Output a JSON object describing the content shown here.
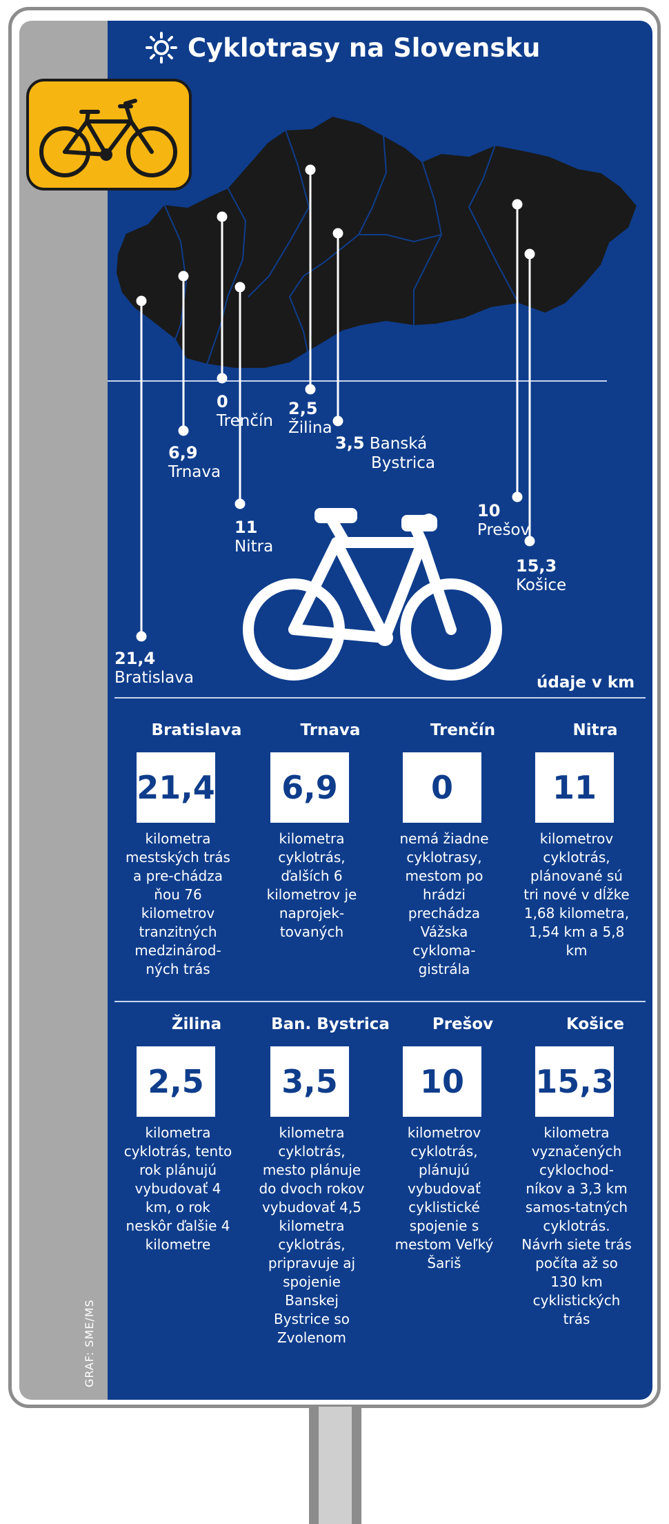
{
  "title": "Cyklotrasy na Slovensku",
  "credit": "GRAF: SME/MS",
  "unit_note": "údaje v km",
  "colors": {
    "panel_blue": "#0f3d8c",
    "badge_yellow": "#f6b511",
    "map_fill": "#1a1a1a"
  },
  "icons": {
    "title_icon": "sun-icon",
    "badge_icon": "bicycle-icon",
    "center_icon": "bicycle-icon"
  },
  "map_labels": [
    {
      "city": "Bratislava",
      "value": "21,4"
    },
    {
      "city": "Trnava",
      "value": "6,9"
    },
    {
      "city": "Trenčín",
      "value": "0"
    },
    {
      "city": "Nitra",
      "value": "11"
    },
    {
      "city": "Žilina",
      "value": "2,5"
    },
    {
      "city": "Banská Bystrica",
      "value": "3,5",
      "city_line1": "Banská",
      "city_line2": "Bystrica"
    },
    {
      "city": "Prešov",
      "value": "10"
    },
    {
      "city": "Košice",
      "value": "15,3"
    }
  ],
  "cards": [
    {
      "city": "Bratislava",
      "value": "21,4",
      "description": "kilometra mestských trás a pre-chádza ňou 76 kilometrov tranzitných medzinárod-ných trás"
    },
    {
      "city": "Trnava",
      "value": "6,9",
      "description": "kilometra cyklotrás, ďalších 6 kilometrov je naprojek-tovaných"
    },
    {
      "city": "Trenčín",
      "value": "0",
      "description": "nemá žiadne cyklotrasy, mestom po hrádzi prechádza Vážska cykloma-gistrála"
    },
    {
      "city": "Nitra",
      "value": "11",
      "description": "kilometrov cyklotrás, plánované sú tri nové v dĺžke 1,68 kilometra, 1,54 km a 5,8 km"
    },
    {
      "city": "Žilina",
      "value": "2,5",
      "description": "kilometra cyklotrás, tento rok plánujú vybudovať 4 km, o rok neskôr ďalšie 4 kilometre"
    },
    {
      "city": "Ban. Bystrica",
      "value": "3,5",
      "description": "kilometra cyklotrás, mesto plánuje do dvoch rokov vybudovať 4,5 kilometra cyklotrás, pripravuje aj spojenie Banskej Bystrice so Zvolenom"
    },
    {
      "city": "Prešov",
      "value": "10",
      "description": "kilometrov cyklotrás, plánujú vybudovať cyklistické spojenie s mestom Veľký Šariš"
    },
    {
      "city": "Košice",
      "value": "15,3",
      "description": "kilometra vyznačených cyklochod-níkov a 3,3 km samos-tatných cyklotrás. Návrh siete trás počíta až so 130 km cyklistických trás"
    }
  ]
}
